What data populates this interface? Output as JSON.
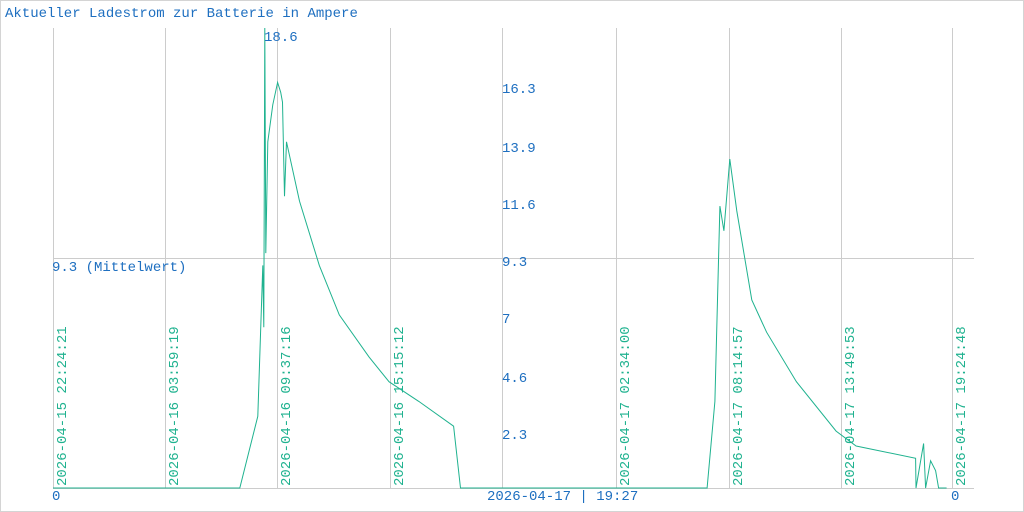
{
  "chart_data": {
    "type": "line",
    "title": "Aktueller Ladestrom zur Batterie in Ampere",
    "xlabel": "",
    "ylabel": "",
    "x_unit": "hours since 2026-04-15 22:24:21",
    "xlim": [
      0,
      44.73
    ],
    "ylim": [
      0,
      18.6
    ],
    "max_label": "18.6",
    "mean": 9.3,
    "mean_label": "9.3 (Mittelwert)",
    "y_tick_labels": [
      {
        "value": 16.3,
        "label": "16.3"
      },
      {
        "value": 13.9,
        "label": "13.9"
      },
      {
        "value": 11.6,
        "label": "11.6"
      },
      {
        "value": 9.3,
        "label": "9.3"
      },
      {
        "value": 7.0,
        "label": "7"
      },
      {
        "value": 4.6,
        "label": "4.6"
      },
      {
        "value": 2.3,
        "label": "2.3"
      }
    ],
    "zero_left_label": "0",
    "zero_right_label": "0",
    "current_time_label": "2026-04-17 | 19:27",
    "x_ticks": [
      {
        "hour": 0,
        "label": "2026-04-15 22:24:21"
      },
      {
        "hour": 5.59,
        "label": "2026-04-16 03:59:19"
      },
      {
        "hour": 11.21,
        "label": "2026-04-16 09:37:16"
      },
      {
        "hour": 16.85,
        "label": "2026-04-16 15:15:12"
      },
      {
        "hour": 22.48,
        "label": ""
      },
      {
        "hour": 28.16,
        "label": "2026-04-17 02:34:00"
      },
      {
        "hour": 33.84,
        "label": "2026-04-17 08:14:57"
      },
      {
        "hour": 39.42,
        "label": "2026-04-17 13:49:53"
      },
      {
        "hour": 45.0,
        "label": "2026-04-17 19:24:48"
      }
    ],
    "grid": true,
    "series": [
      {
        "name": "Ladestrom",
        "color": "#1fb28f",
        "points": [
          [
            0,
            0
          ],
          [
            9.35,
            0
          ],
          [
            10.25,
            2.9
          ],
          [
            10.5,
            9.0
          ],
          [
            10.55,
            6.5
          ],
          [
            10.6,
            18.6
          ],
          [
            10.65,
            9.5
          ],
          [
            10.75,
            14.0
          ],
          [
            11.0,
            15.5
          ],
          [
            11.24,
            16.4
          ],
          [
            11.4,
            16.0
          ],
          [
            11.49,
            15.6
          ],
          [
            11.59,
            11.8
          ],
          [
            11.69,
            14.0
          ],
          [
            12.34,
            11.6
          ],
          [
            13.33,
            9.0
          ],
          [
            14.33,
            7.0
          ],
          [
            15.82,
            5.3
          ],
          [
            16.82,
            4.3
          ],
          [
            18.31,
            3.5
          ],
          [
            20.05,
            2.5
          ],
          [
            20.4,
            0
          ],
          [
            32.74,
            0
          ],
          [
            33.13,
            3.5
          ],
          [
            33.38,
            11.4
          ],
          [
            33.58,
            10.4
          ],
          [
            33.88,
            13.3
          ],
          [
            34.23,
            11.2
          ],
          [
            34.98,
            7.6
          ],
          [
            35.72,
            6.3
          ],
          [
            37.21,
            4.3
          ],
          [
            39.2,
            2.3
          ],
          [
            40.2,
            1.7
          ],
          [
            43.18,
            1.2
          ],
          [
            43.2,
            0
          ],
          [
            43.58,
            1.8
          ],
          [
            43.68,
            0
          ],
          [
            43.93,
            1.1
          ],
          [
            44.18,
            0.7
          ],
          [
            44.33,
            0
          ],
          [
            44.73,
            0
          ]
        ]
      }
    ],
    "colors": {
      "text": "#1e6fc0",
      "time_label": "#1fb28f",
      "grid": "#cccccc"
    }
  }
}
